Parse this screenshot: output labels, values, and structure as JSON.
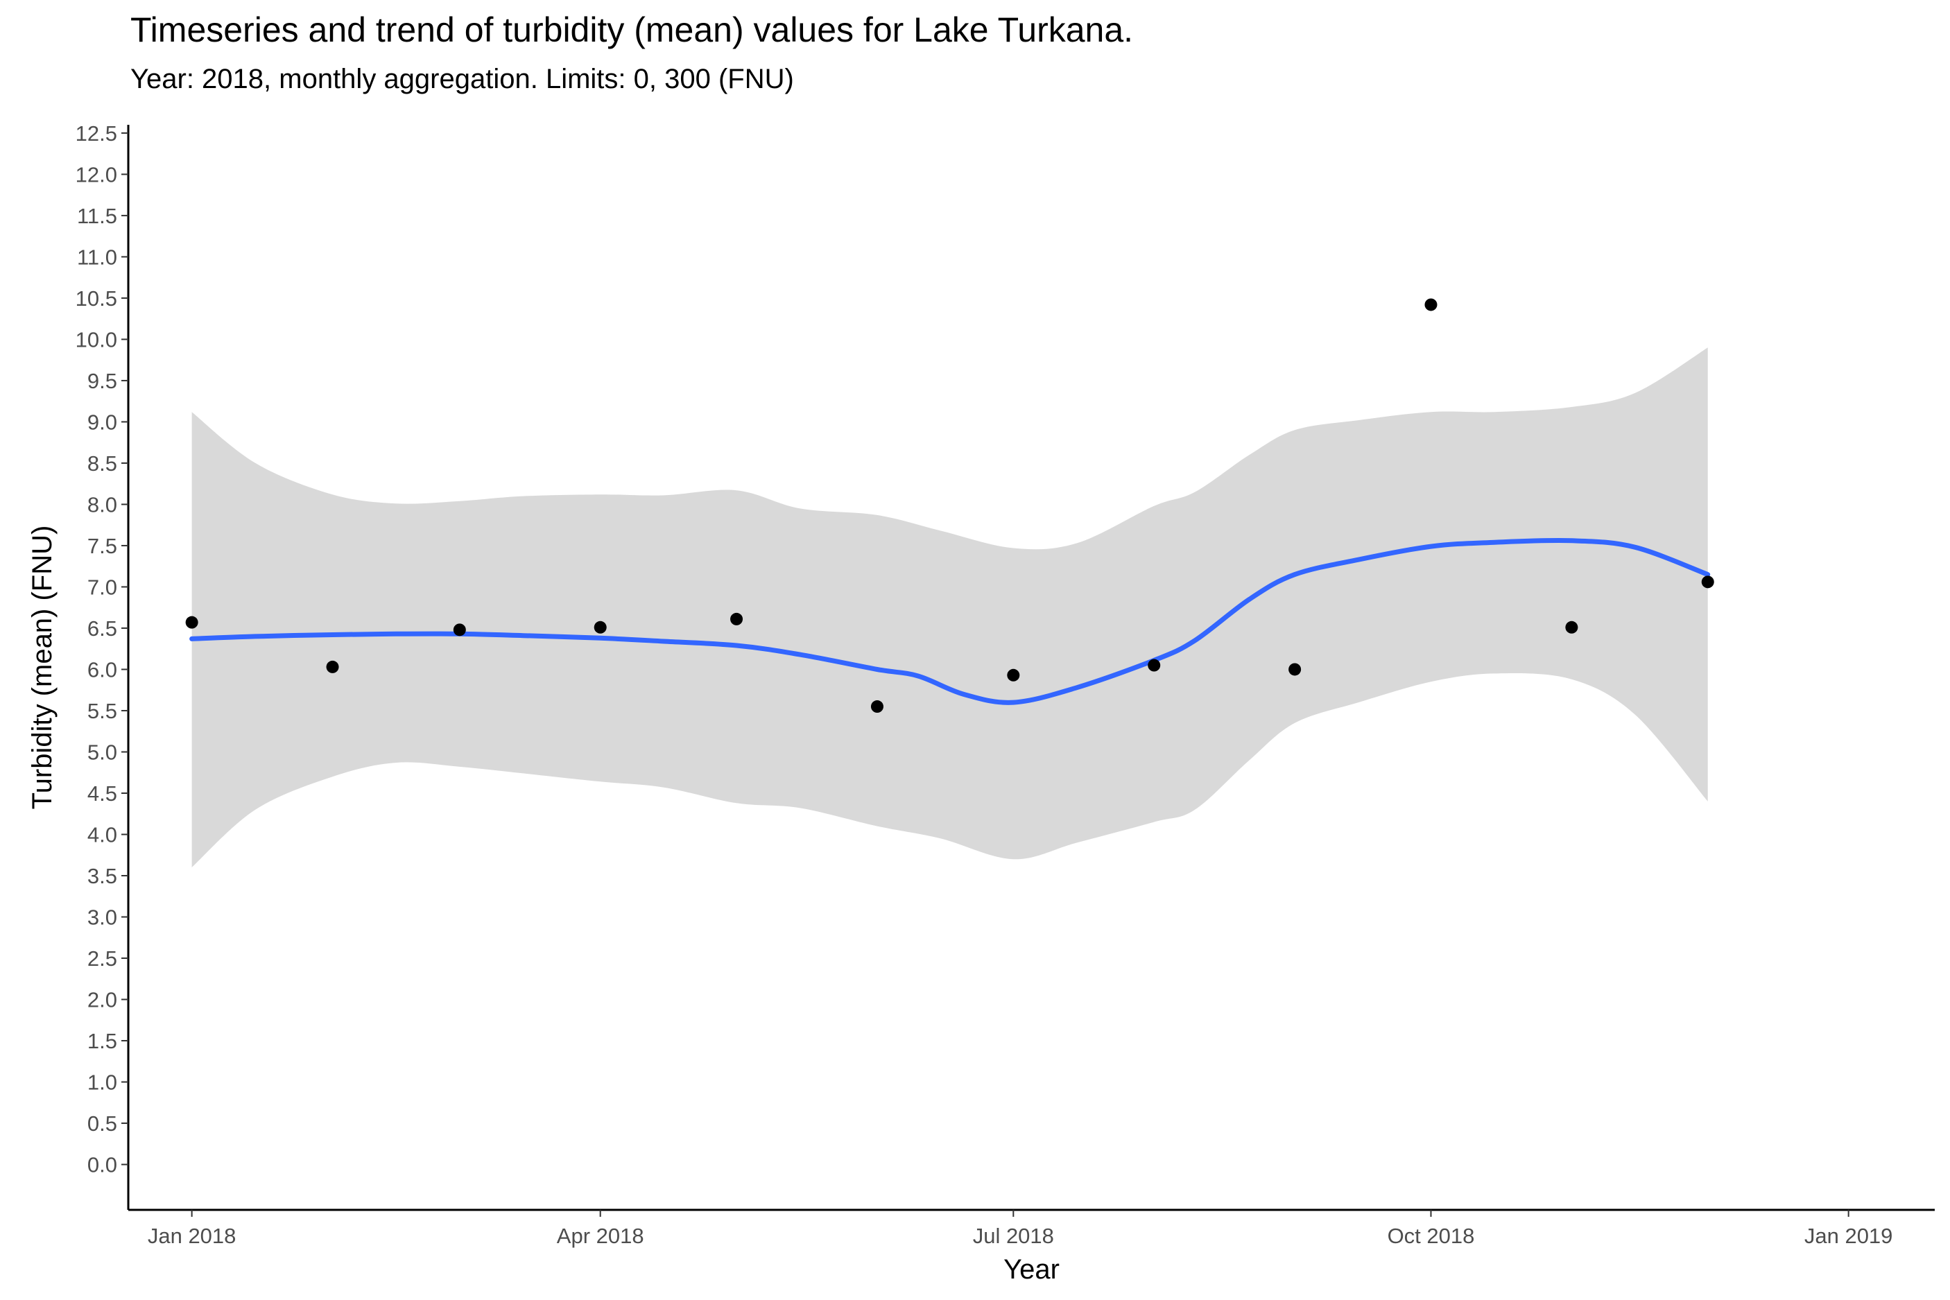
{
  "chart_data": {
    "type": "scatter",
    "title": "Timeseries and trend of turbidity (mean) values for Lake Turkana.",
    "subtitle": "Year: 2018, monthly aggregation. Limits: 0, 300 (FNU)",
    "xlabel": "Year",
    "ylabel": "Turbidity (mean) (FNU)",
    "x_ticks": [
      "Jan 2018",
      "Apr 2018",
      "Jul 2018",
      "Oct 2018",
      "Jan 2019"
    ],
    "x_tick_dates": [
      "2018-01-01",
      "2018-04-01",
      "2018-07-01",
      "2018-10-01",
      "2019-01-01"
    ],
    "xlim": [
      "2017-12-18",
      "2019-01-20"
    ],
    "y_ticks": [
      "0.0",
      "0.5",
      "1.0",
      "1.5",
      "2.0",
      "2.5",
      "3.0",
      "3.5",
      "4.0",
      "4.5",
      "5.0",
      "5.5",
      "6.0",
      "6.5",
      "7.0",
      "7.5",
      "8.0",
      "8.5",
      "9.0",
      "9.5",
      "10.0",
      "10.5",
      "11.0",
      "11.5",
      "12.0",
      "12.5"
    ],
    "ylim": [
      -0.55,
      12.6
    ],
    "grid": false,
    "series": [
      {
        "type": "scatter",
        "color": "#000000",
        "points": [
          {
            "x": "2018-01-01",
            "y": 6.57
          },
          {
            "x": "2018-02-01",
            "y": 6.03
          },
          {
            "x": "2018-03-01",
            "y": 6.48
          },
          {
            "x": "2018-04-01",
            "y": 6.51
          },
          {
            "x": "2018-05-01",
            "y": 6.61
          },
          {
            "x": "2018-06-01",
            "y": 5.55
          },
          {
            "x": "2018-07-01",
            "y": 5.93
          },
          {
            "x": "2018-08-01",
            "y": 6.05
          },
          {
            "x": "2018-09-01",
            "y": 6.0
          },
          {
            "x": "2018-10-01",
            "y": 10.42
          },
          {
            "x": "2018-11-01",
            "y": 6.51
          },
          {
            "x": "2018-12-01",
            "y": 7.06
          }
        ]
      },
      {
        "type": "line",
        "color": "#3366FF",
        "points": [
          {
            "x": "2018-01-01",
            "y": 6.37
          },
          {
            "x": "2018-01-15",
            "y": 6.4
          },
          {
            "x": "2018-02-01",
            "y": 6.42
          },
          {
            "x": "2018-02-15",
            "y": 6.43
          },
          {
            "x": "2018-03-01",
            "y": 6.43
          },
          {
            "x": "2018-03-15",
            "y": 6.41
          },
          {
            "x": "2018-04-01",
            "y": 6.38
          },
          {
            "x": "2018-04-15",
            "y": 6.34
          },
          {
            "x": "2018-05-01",
            "y": 6.29
          },
          {
            "x": "2018-05-15",
            "y": 6.18
          },
          {
            "x": "2018-06-01",
            "y": 6.0
          },
          {
            "x": "2018-06-10",
            "y": 5.92
          },
          {
            "x": "2018-06-20",
            "y": 5.7
          },
          {
            "x": "2018-07-01",
            "y": 5.6
          },
          {
            "x": "2018-07-15",
            "y": 5.78
          },
          {
            "x": "2018-08-01",
            "y": 6.11
          },
          {
            "x": "2018-08-10",
            "y": 6.35
          },
          {
            "x": "2018-08-22",
            "y": 6.85
          },
          {
            "x": "2018-09-01",
            "y": 7.15
          },
          {
            "x": "2018-09-15",
            "y": 7.33
          },
          {
            "x": "2018-10-01",
            "y": 7.49
          },
          {
            "x": "2018-10-15",
            "y": 7.54
          },
          {
            "x": "2018-11-01",
            "y": 7.56
          },
          {
            "x": "2018-11-15",
            "y": 7.48
          },
          {
            "x": "2018-12-01",
            "y": 7.15
          }
        ]
      },
      {
        "type": "area-band",
        "color": "#D9D9D9",
        "points": [
          {
            "x": "2018-01-01",
            "lower": 3.6,
            "upper": 9.12
          },
          {
            "x": "2018-01-15",
            "lower": 4.3,
            "upper": 8.5
          },
          {
            "x": "2018-02-01",
            "lower": 4.7,
            "upper": 8.12
          },
          {
            "x": "2018-02-15",
            "lower": 4.87,
            "upper": 8.01
          },
          {
            "x": "2018-03-01",
            "lower": 4.82,
            "upper": 8.04
          },
          {
            "x": "2018-03-15",
            "lower": 4.74,
            "upper": 8.1
          },
          {
            "x": "2018-04-01",
            "lower": 4.64,
            "upper": 8.12
          },
          {
            "x": "2018-04-15",
            "lower": 4.57,
            "upper": 8.11
          },
          {
            "x": "2018-05-01",
            "lower": 4.38,
            "upper": 8.17
          },
          {
            "x": "2018-05-15",
            "lower": 4.32,
            "upper": 7.95
          },
          {
            "x": "2018-06-01",
            "lower": 4.1,
            "upper": 7.87
          },
          {
            "x": "2018-06-15",
            "lower": 3.95,
            "upper": 7.68
          },
          {
            "x": "2018-07-01",
            "lower": 3.7,
            "upper": 7.47
          },
          {
            "x": "2018-07-15",
            "lower": 3.9,
            "upper": 7.53
          },
          {
            "x": "2018-08-01",
            "lower": 4.15,
            "upper": 7.98
          },
          {
            "x": "2018-08-10",
            "lower": 4.3,
            "upper": 8.15
          },
          {
            "x": "2018-08-22",
            "lower": 4.9,
            "upper": 8.6
          },
          {
            "x": "2018-09-01",
            "lower": 5.35,
            "upper": 8.9
          },
          {
            "x": "2018-09-15",
            "lower": 5.6,
            "upper": 9.02
          },
          {
            "x": "2018-10-01",
            "lower": 5.85,
            "upper": 9.12
          },
          {
            "x": "2018-10-15",
            "lower": 5.95,
            "upper": 9.12
          },
          {
            "x": "2018-11-01",
            "lower": 5.88,
            "upper": 9.18
          },
          {
            "x": "2018-11-15",
            "lower": 5.45,
            "upper": 9.35
          },
          {
            "x": "2018-12-01",
            "lower": 4.4,
            "upper": 9.9
          }
        ]
      }
    ]
  }
}
